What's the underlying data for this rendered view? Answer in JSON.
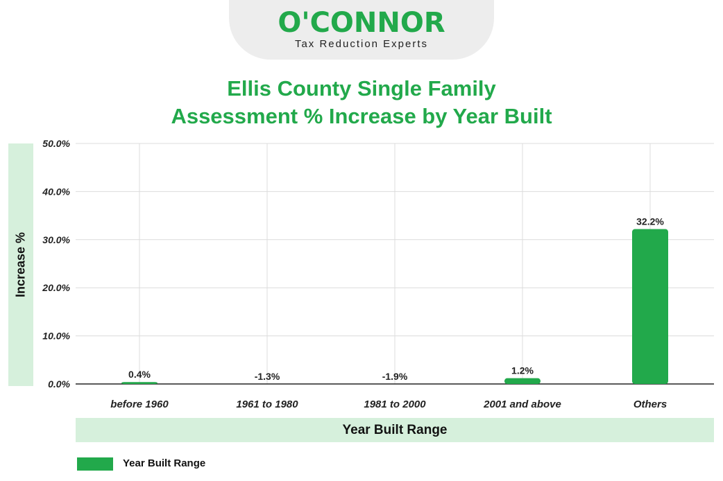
{
  "logo": {
    "name": "O'CONNOR",
    "tagline": "Tax Reduction Experts"
  },
  "chart_data": {
    "type": "bar",
    "title_lines": [
      "Ellis County Single Family",
      "Assessment % Increase by Year Built"
    ],
    "xlabel": "Year Built Range",
    "ylabel": "Increase %",
    "categories": [
      "before 1960",
      "1961 to 1980",
      "1981 to 2000",
      "2001 and above",
      "Others"
    ],
    "series": [
      {
        "name": "Year Built Range",
        "values": [
          0.4,
          -1.3,
          -1.9,
          1.2,
          32.2
        ],
        "labels": [
          "0.4%",
          "-1.3%",
          "-1.9%",
          "1.2%",
          "32.2%"
        ]
      }
    ],
    "ylim": [
      0,
      50
    ],
    "yticks": [
      0,
      10,
      20,
      30,
      40,
      50
    ],
    "ytick_labels": [
      "0.0%",
      "10.0%",
      "20.0%",
      "30.0%",
      "40.0%",
      "50.0%"
    ],
    "grid": true,
    "legend_position": "bottom-left",
    "bar_color": "#22a94b"
  }
}
